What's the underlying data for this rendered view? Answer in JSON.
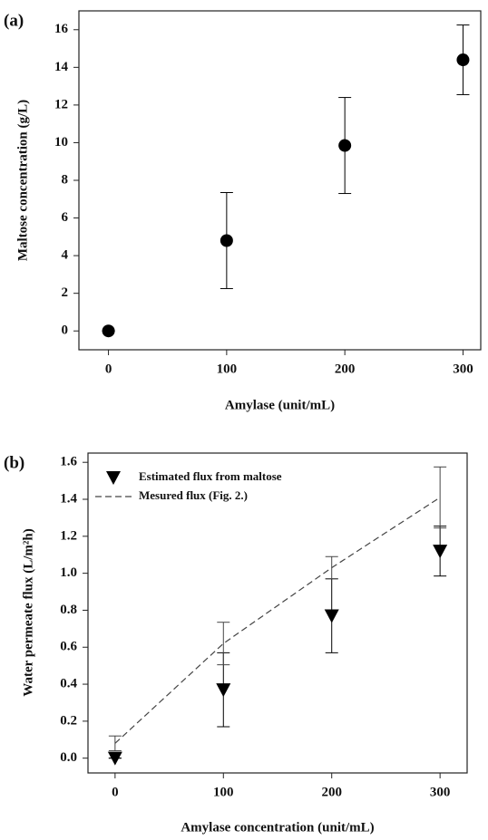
{
  "chart_data": [
    {
      "type": "scatter",
      "panel_label": "(a)",
      "x_label": "Amylase (unit/mL)",
      "y_label": "Maltose concentration (g/L)",
      "x": [
        0,
        100,
        200,
        300
      ],
      "values": [
        0,
        4.8,
        9.85,
        14.4
      ],
      "errors": [
        0,
        2.55,
        2.55,
        1.85
      ],
      "marker": "circle",
      "color": "#000000",
      "xlim": [
        -25,
        315
      ],
      "xticks": [
        0,
        100,
        200,
        300
      ],
      "ylim": [
        -1,
        17
      ],
      "yticks": [
        0,
        2,
        4,
        6,
        8,
        10,
        12,
        14,
        16
      ]
    },
    {
      "type": "scatter",
      "panel_label": "(b)",
      "x_label": "Amylase concentration (unit/mL)",
      "y_label": "Water permeate flux (L/m²h)",
      "x": [
        0,
        100,
        200,
        300
      ],
      "series": [
        {
          "name": "Estimated flux from maltose",
          "color": "#000000",
          "marker": "triangle-down",
          "values": [
            0,
            0.37,
            0.77,
            1.12
          ],
          "errors": [
            0,
            0.2,
            0.2,
            0.135
          ]
        },
        {
          "name": "Mesured flux (Fig. 2.)",
          "color": "#444444",
          "dashed": true,
          "values": [
            0.08,
            0.62,
            1.03,
            1.41
          ],
          "errors": [
            0.04,
            0.115,
            0.06,
            0.165
          ]
        }
      ],
      "xlim": [
        -25,
        325
      ],
      "xticks": [
        0,
        100,
        200,
        300
      ],
      "ylim": [
        -0.08,
        1.65
      ],
      "yticks": [
        {
          "value": 0,
          "label": "0.0"
        },
        {
          "value": 0.2,
          "label": "0.2"
        },
        {
          "value": 0.4,
          "label": "0.4"
        },
        {
          "value": 0.6,
          "label": "0.6"
        },
        {
          "value": 0.8,
          "label": "0.8"
        },
        {
          "value": 1,
          "label": "1.0"
        },
        {
          "value": 1.2,
          "label": "1.2"
        },
        {
          "value": 1.4,
          "label": "1.4"
        },
        {
          "value": 1.6,
          "label": "1.6"
        }
      ]
    }
  ]
}
